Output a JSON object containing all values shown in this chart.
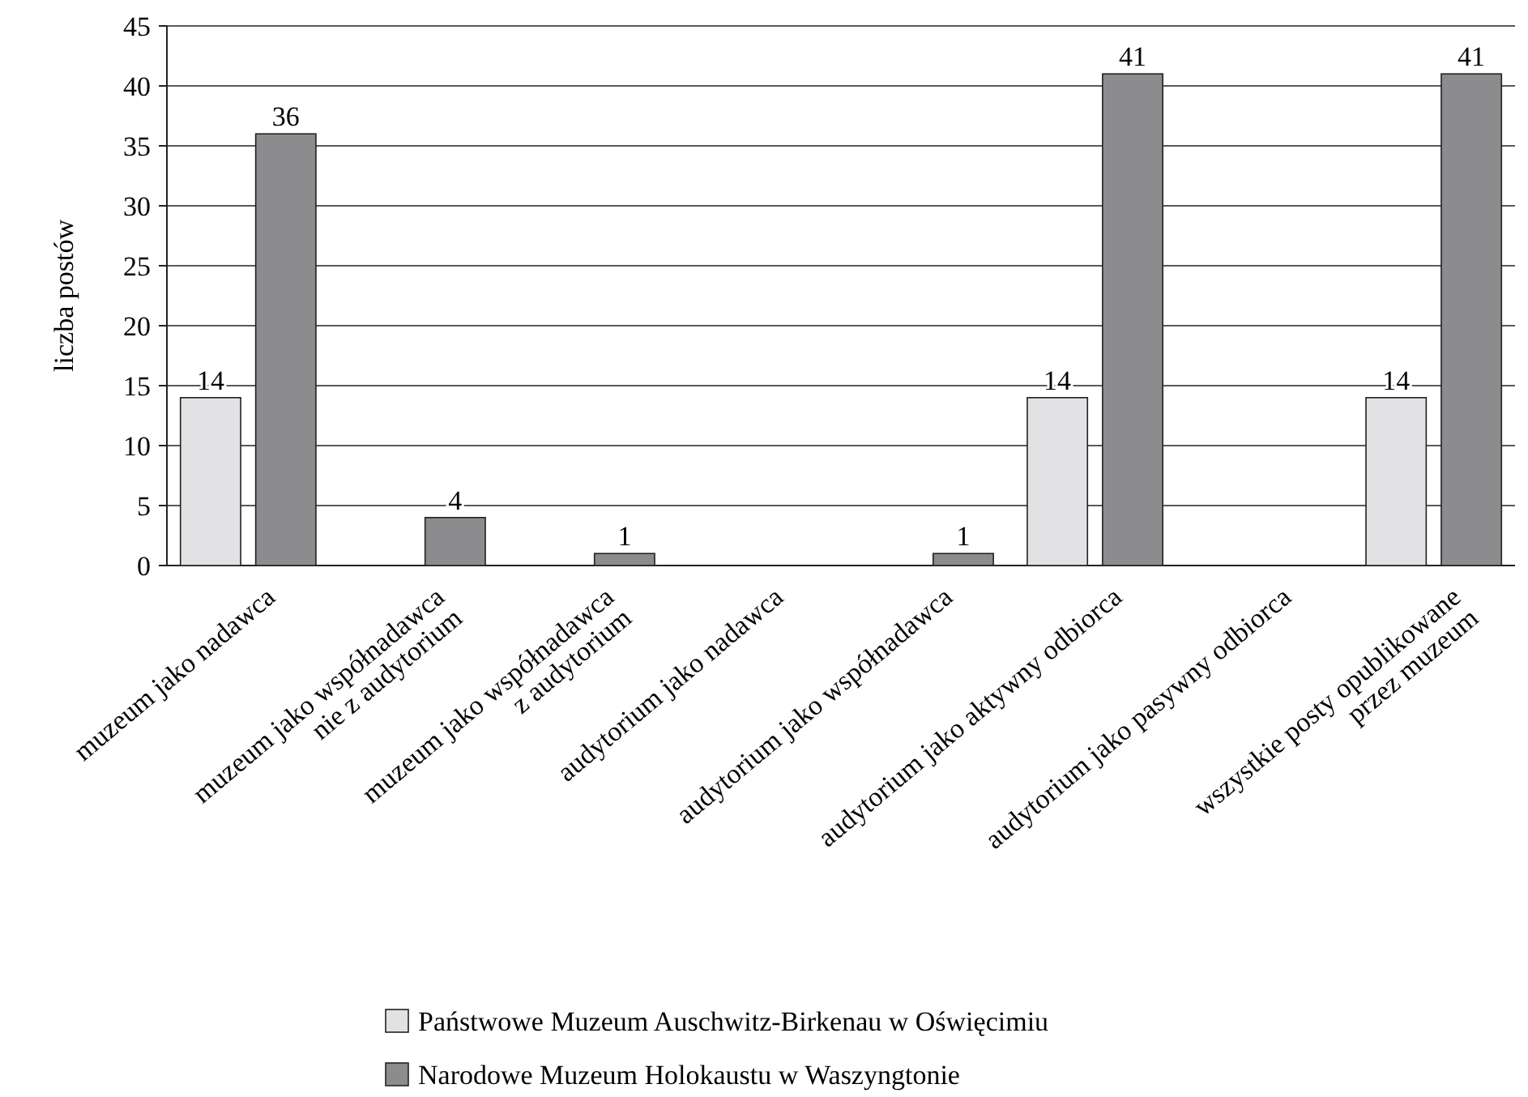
{
  "chart_data": {
    "type": "bar",
    "ylabel": "liczba postów",
    "categories": [
      "muzeum jako nadawca",
      "muzeum jako współnadawca\nnie z audytorium",
      "muzeum jako współnadawca\nz audytorium",
      "audytorium jako nadawca",
      "audytorium jako współnadawca",
      "audytorium jako aktywny odbiorca",
      "audytorium jako pasywny odbiorca",
      "wszystkie posty opublikowane\nprzez muzeum"
    ],
    "series": [
      {
        "name": "Państwowe Muzeum Auschwitz-Birkenau w Oświęcimiu",
        "color": "#e2e2e4",
        "values": [
          14,
          null,
          null,
          null,
          null,
          14,
          null,
          14
        ]
      },
      {
        "name": "Narodowe Muzeum Holokaustu w Waszyngtonie",
        "color": "#8c8c8e",
        "values": [
          36,
          4,
          1,
          null,
          1,
          41,
          null,
          41
        ]
      }
    ],
    "ylim": [
      0,
      45
    ],
    "yticks": [
      0,
      5,
      10,
      15,
      20,
      25,
      30,
      35,
      40,
      45
    ],
    "grid": "y",
    "data_labels": true,
    "legend": "bottom"
  }
}
